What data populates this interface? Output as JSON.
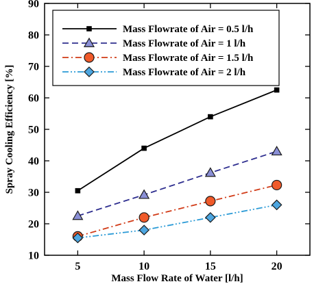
{
  "chart_data": {
    "type": "line",
    "xlabel": "Mass Flow Rate of Water [l/h]",
    "ylabel": "Spray Cooling Efficiency [%]",
    "xlim": [
      2.5,
      22.5
    ],
    "ylim": [
      10,
      90
    ],
    "xticks": [
      5,
      10,
      15,
      20
    ],
    "yticks": [
      10,
      20,
      30,
      40,
      50,
      60,
      70,
      80,
      90
    ],
    "grid": false,
    "legend_position": "top-left",
    "x": [
      5,
      10,
      15,
      20
    ],
    "series": [
      {
        "name": "Mass Flowrate of Air = 0.5 l/h",
        "values": [
          30.5,
          44,
          54,
          62.5
        ],
        "color": "#000000",
        "line_style": "solid",
        "marker": "square",
        "marker_fill": "#000000"
      },
      {
        "name": "Mass Flowrate of Air = 1 l/h",
        "values": [
          22.5,
          29.2,
          36.2,
          43
        ],
        "color": "#2e2e8f",
        "line_style": "dashed",
        "marker": "triangle",
        "marker_fill": "#8a8fd6"
      },
      {
        "name": "Mass Flowrate of Air = 1.5 l/h",
        "values": [
          16,
          22,
          27.2,
          32.3
        ],
        "color": "#d13a16",
        "line_style": "dash-dot",
        "marker": "circle",
        "marker_fill": "#f05a2a"
      },
      {
        "name": "Mass Flowrate of Air = 2 l/h",
        "values": [
          15.5,
          18,
          22,
          26
        ],
        "color": "#2a9ad6",
        "line_style": "dash-dot-dot",
        "marker": "diamond",
        "marker_fill": "#4da6e0"
      }
    ]
  }
}
